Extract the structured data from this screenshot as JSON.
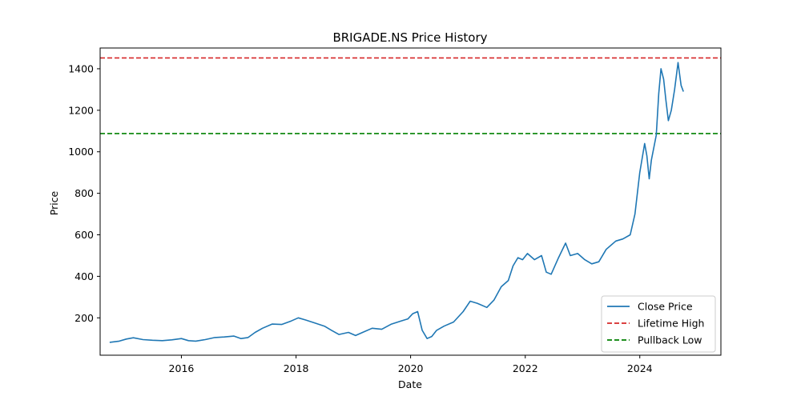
{
  "chart_data": {
    "type": "line",
    "title": "BRIGADE.NS Price History",
    "xlabel": "Date",
    "ylabel": "Price",
    "xlim": [
      "2014-08-01",
      "2025-06-01"
    ],
    "ylim": [
      20,
      1500
    ],
    "x_ticks": [
      2016,
      2018,
      2020,
      2022,
      2024
    ],
    "y_ticks": [
      200,
      400,
      600,
      800,
      1000,
      1200,
      1400
    ],
    "grid": false,
    "legend_position": "lower-right",
    "series": [
      {
        "name": "Close Price",
        "color": "#1f77b4",
        "style": "solid",
        "points": [
          [
            "2014-10-01",
            82
          ],
          [
            "2014-12-01",
            88
          ],
          [
            "2015-01-15",
            98
          ],
          [
            "2015-03-01",
            104
          ],
          [
            "2015-05-01",
            95
          ],
          [
            "2015-07-01",
            92
          ],
          [
            "2015-09-01",
            90
          ],
          [
            "2015-11-01",
            94
          ],
          [
            "2016-01-01",
            100
          ],
          [
            "2016-02-15",
            90
          ],
          [
            "2016-04-01",
            88
          ],
          [
            "2016-06-01",
            95
          ],
          [
            "2016-08-01",
            105
          ],
          [
            "2016-10-01",
            108
          ],
          [
            "2016-12-01",
            112
          ],
          [
            "2017-01-15",
            100
          ],
          [
            "2017-03-01",
            105
          ],
          [
            "2017-04-15",
            130
          ],
          [
            "2017-06-01",
            150
          ],
          [
            "2017-08-01",
            170
          ],
          [
            "2017-10-01",
            168
          ],
          [
            "2017-12-01",
            185
          ],
          [
            "2018-01-15",
            200
          ],
          [
            "2018-03-01",
            190
          ],
          [
            "2018-05-01",
            175
          ],
          [
            "2018-07-01",
            160
          ],
          [
            "2018-08-15",
            140
          ],
          [
            "2018-10-01",
            120
          ],
          [
            "2018-12-01",
            130
          ],
          [
            "2019-01-15",
            115
          ],
          [
            "2019-03-01",
            130
          ],
          [
            "2019-05-01",
            150
          ],
          [
            "2019-07-01",
            145
          ],
          [
            "2019-09-01",
            170
          ],
          [
            "2019-11-01",
            185
          ],
          [
            "2019-12-15",
            195
          ],
          [
            "2020-01-15",
            220
          ],
          [
            "2020-02-15",
            230
          ],
          [
            "2020-03-15",
            140
          ],
          [
            "2020-04-15",
            100
          ],
          [
            "2020-05-15",
            110
          ],
          [
            "2020-06-15",
            140
          ],
          [
            "2020-08-01",
            160
          ],
          [
            "2020-10-01",
            180
          ],
          [
            "2020-12-01",
            230
          ],
          [
            "2021-01-15",
            280
          ],
          [
            "2021-03-01",
            270
          ],
          [
            "2021-05-01",
            250
          ],
          [
            "2021-06-15",
            285
          ],
          [
            "2021-08-01",
            350
          ],
          [
            "2021-09-15",
            380
          ],
          [
            "2021-10-15",
            450
          ],
          [
            "2021-11-15",
            490
          ],
          [
            "2021-12-15",
            480
          ],
          [
            "2022-01-15",
            510
          ],
          [
            "2022-03-01",
            480
          ],
          [
            "2022-04-15",
            500
          ],
          [
            "2022-05-15",
            420
          ],
          [
            "2022-06-15",
            410
          ],
          [
            "2022-08-01",
            490
          ],
          [
            "2022-09-15",
            560
          ],
          [
            "2022-10-15",
            500
          ],
          [
            "2022-12-01",
            510
          ],
          [
            "2023-01-15",
            480
          ],
          [
            "2023-03-01",
            460
          ],
          [
            "2023-04-15",
            470
          ],
          [
            "2023-06-01",
            530
          ],
          [
            "2023-08-01",
            570
          ],
          [
            "2023-09-15",
            580
          ],
          [
            "2023-11-01",
            600
          ],
          [
            "2023-12-01",
            700
          ],
          [
            "2024-01-01",
            900
          ],
          [
            "2024-02-01",
            1040
          ],
          [
            "2024-02-15",
            980
          ],
          [
            "2024-03-01",
            870
          ],
          [
            "2024-03-15",
            960
          ],
          [
            "2024-04-15",
            1080
          ],
          [
            "2024-05-01",
            1280
          ],
          [
            "2024-05-15",
            1400
          ],
          [
            "2024-06-01",
            1350
          ],
          [
            "2024-06-15",
            1250
          ],
          [
            "2024-07-01",
            1150
          ],
          [
            "2024-07-20",
            1200
          ],
          [
            "2024-08-10",
            1300
          ],
          [
            "2024-09-01",
            1430
          ],
          [
            "2024-09-20",
            1320
          ],
          [
            "2024-10-05",
            1290
          ]
        ]
      },
      {
        "name": "Lifetime High",
        "color": "#d62728",
        "style": "dashed",
        "value": 1452
      },
      {
        "name": "Pullback Low",
        "color": "#008000",
        "style": "dashed",
        "value": 1088
      }
    ]
  }
}
